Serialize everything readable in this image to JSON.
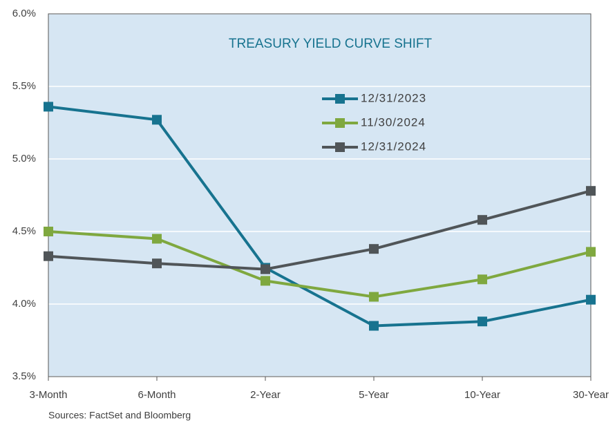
{
  "chart_data": {
    "type": "line",
    "title": "TREASURY YIELD CURVE SHIFT",
    "categories": [
      "3-Month",
      "6-Month",
      "2-Year",
      "5-Year",
      "10-Year",
      "30-Year"
    ],
    "series": [
      {
        "name": "12/31/2023",
        "color": "#17738f",
        "values": [
          5.36,
          5.27,
          4.25,
          3.85,
          3.88,
          4.03
        ]
      },
      {
        "name": "11/30/2024",
        "color": "#7fa83f",
        "values": [
          4.5,
          4.45,
          4.16,
          4.05,
          4.17,
          4.36
        ]
      },
      {
        "name": "12/31/2024",
        "color": "#505558",
        "values": [
          4.33,
          4.28,
          4.24,
          4.38,
          4.58,
          4.78
        ]
      }
    ],
    "ylim": [
      3.5,
      6.0
    ],
    "yticks": [
      {
        "value": 3.5,
        "label": "3.5%"
      },
      {
        "value": 4.0,
        "label": "4.0%"
      },
      {
        "value": 4.5,
        "label": "4.5%"
      },
      {
        "value": 5.0,
        "label": "5.0%"
      },
      {
        "value": 5.5,
        "label": "5.5%"
      },
      {
        "value": 6.0,
        "label": "6.0%"
      }
    ],
    "grid": true,
    "source": "Sources: FactSet and Bloomberg"
  }
}
